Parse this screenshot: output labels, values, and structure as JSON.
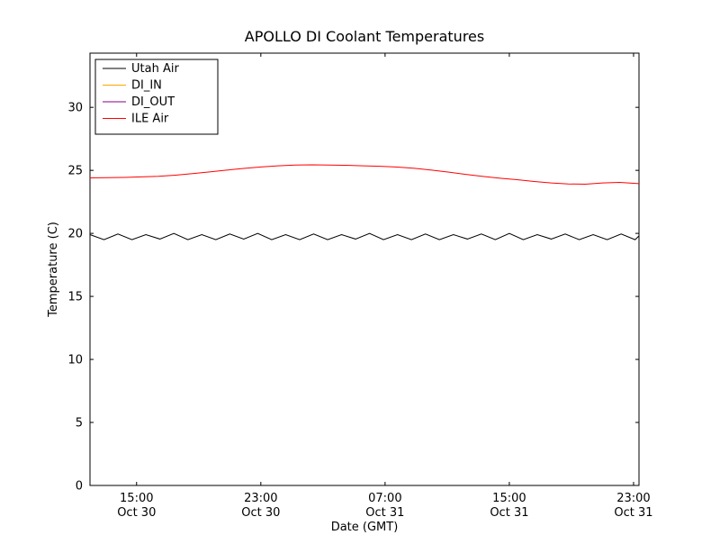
{
  "figure": {
    "background": "#ffffff",
    "plot_border_color": "#000000"
  },
  "chart_data": {
    "type": "line",
    "title": "APOLLO DI Coolant Temperatures",
    "xlabel": "Date (GMT)",
    "ylabel": "Temperature (C)",
    "xlim": [
      0,
      35.35
    ],
    "ylim": [
      0,
      34.3
    ],
    "x_unit": "hours after 12:00 Oct 30 (GMT)",
    "grid": false,
    "legend_position": "upper-left",
    "yticks": [
      0,
      5,
      10,
      15,
      20,
      25,
      30
    ],
    "xticks": [
      {
        "x": 3,
        "time": "15:00",
        "date": "Oct 30"
      },
      {
        "x": 11,
        "time": "23:00",
        "date": "Oct 30"
      },
      {
        "x": 19,
        "time": "07:00",
        "date": "Oct 31"
      },
      {
        "x": 27,
        "time": "15:00",
        "date": "Oct 31"
      },
      {
        "x": 35,
        "time": "23:00",
        "date": "Oct 31"
      }
    ],
    "series": [
      {
        "name": "Utah Air",
        "color": "#000000",
        "x": [
          0,
          0.9,
          1.8,
          2.7,
          3.6,
          4.5,
          5.4,
          6.3,
          7.2,
          8.1,
          9.0,
          9.9,
          10.8,
          11.7,
          12.6,
          13.5,
          14.4,
          15.3,
          16.2,
          17.1,
          18.0,
          18.9,
          19.8,
          20.7,
          21.6,
          22.5,
          23.4,
          24.3,
          25.2,
          26.1,
          27.0,
          27.9,
          28.8,
          29.7,
          30.6,
          31.5,
          32.4,
          33.3,
          34.2,
          35.1,
          35.35
        ],
        "values": [
          19.9,
          19.5,
          19.95,
          19.5,
          19.9,
          19.55,
          20.0,
          19.5,
          19.9,
          19.5,
          19.95,
          19.55,
          20.0,
          19.5,
          19.9,
          19.5,
          19.95,
          19.5,
          19.9,
          19.55,
          20.0,
          19.5,
          19.9,
          19.5,
          19.95,
          19.5,
          19.9,
          19.55,
          19.95,
          19.5,
          20.0,
          19.5,
          19.9,
          19.55,
          19.95,
          19.5,
          19.9,
          19.5,
          19.95,
          19.5,
          19.8
        ]
      },
      {
        "name": "DI_IN",
        "color": "#ffa500",
        "x": [],
        "values": []
      },
      {
        "name": "DI_OUT",
        "color": "#800080",
        "x": [],
        "values": []
      },
      {
        "name": "ILE Air",
        "color": "#ff0000",
        "x": [
          0,
          1.1,
          2.2,
          3.3,
          4.4,
          5.5,
          6.6,
          7.7,
          8.8,
          9.9,
          11.0,
          12.1,
          13.2,
          14.3,
          15.4,
          16.5,
          17.6,
          18.7,
          19.8,
          20.9,
          22.0,
          23.1,
          24.2,
          25.3,
          26.4,
          27.5,
          28.6,
          29.7,
          30.8,
          31.9,
          33.0,
          34.1,
          35.35
        ],
        "values": [
          24.4,
          24.42,
          24.44,
          24.48,
          24.53,
          24.62,
          24.74,
          24.88,
          25.02,
          25.15,
          25.27,
          25.36,
          25.42,
          25.44,
          25.42,
          25.4,
          25.36,
          25.32,
          25.26,
          25.16,
          25.02,
          24.86,
          24.68,
          24.52,
          24.38,
          24.26,
          24.12,
          24.0,
          23.92,
          23.9,
          24.0,
          24.05,
          23.95
        ]
      }
    ]
  }
}
